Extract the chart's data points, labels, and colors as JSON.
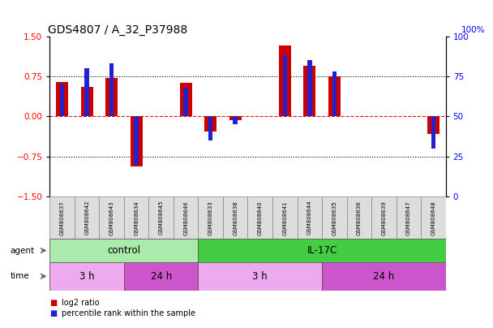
{
  "title": "GDS4807 / A_32_P37988",
  "samples": [
    "GSM808637",
    "GSM808642",
    "GSM808643",
    "GSM808634",
    "GSM808645",
    "GSM808646",
    "GSM808633",
    "GSM808638",
    "GSM808640",
    "GSM808641",
    "GSM808644",
    "GSM808635",
    "GSM808636",
    "GSM808639",
    "GSM808647",
    "GSM808648"
  ],
  "log2_ratio": [
    0.65,
    0.55,
    0.72,
    -0.93,
    0.0,
    0.63,
    -0.28,
    -0.07,
    0.0,
    1.33,
    0.95,
    0.75,
    0.0,
    0.0,
    0.0,
    -0.33
  ],
  "percentile": [
    70,
    80,
    83,
    20,
    50,
    68,
    35,
    45,
    50,
    88,
    85,
    78,
    50,
    50,
    50,
    30
  ],
  "bar_color_red": "#cc0000",
  "bar_color_blue": "#2222cc",
  "ylim_left": [
    -1.5,
    1.5
  ],
  "ylim_right": [
    0,
    100
  ],
  "yticks_left": [
    -1.5,
    -0.75,
    0,
    0.75,
    1.5
  ],
  "yticks_right": [
    0,
    25,
    50,
    75,
    100
  ],
  "agent_groups": [
    {
      "label": "control",
      "start": 0,
      "end": 6,
      "color": "#aaeaaa"
    },
    {
      "label": "IL-17C",
      "start": 6,
      "end": 16,
      "color": "#44cc44"
    }
  ],
  "time_groups": [
    {
      "label": "3 h",
      "start": 0,
      "end": 3,
      "color": "#eeaaee"
    },
    {
      "label": "24 h",
      "start": 3,
      "end": 6,
      "color": "#cc55cc"
    },
    {
      "label": "3 h",
      "start": 6,
      "end": 11,
      "color": "#eeaaee"
    },
    {
      "label": "24 h",
      "start": 11,
      "end": 16,
      "color": "#cc55cc"
    }
  ],
  "legend_items": [
    {
      "color": "#cc0000",
      "label": "log2 ratio"
    },
    {
      "color": "#2222cc",
      "label": "percentile rank within the sample"
    }
  ],
  "red_bar_width": 0.5,
  "blue_bar_width": 0.18
}
